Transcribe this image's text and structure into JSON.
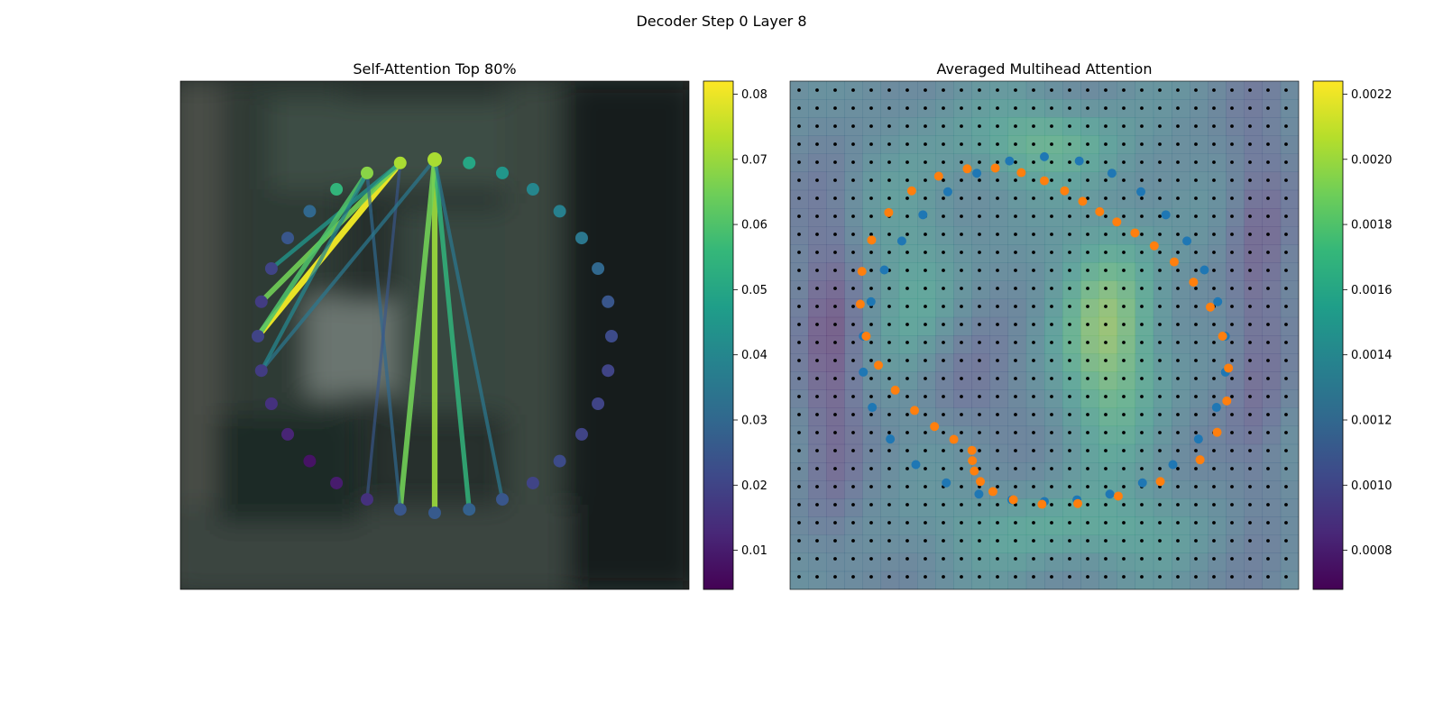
{
  "figure": {
    "title": "Decoder Step 0 Layer 8"
  },
  "colors": {
    "viridis": [
      "#440154",
      "#482878",
      "#3e4989",
      "#31688e",
      "#26828e",
      "#1f9e89",
      "#35b779",
      "#6ece58",
      "#b5de2b",
      "#fde725"
    ],
    "contour_inner": "#1f77b4",
    "contour_outer": "#ff7f0e",
    "grid_dot": "#000000"
  },
  "chart_data": [
    {
      "type": "scatter",
      "title": "Self-Attention Top 80%",
      "description_free": true,
      "n_points": 32,
      "point_values": [
        0.072,
        0.05,
        0.045,
        0.04,
        0.038,
        0.035,
        0.03,
        0.025,
        0.022,
        0.02,
        0.02,
        0.02,
        0.022,
        0.02,
        0.025,
        0.028,
        0.026,
        0.025,
        0.015,
        0.01,
        0.008,
        0.012,
        0.015,
        0.018,
        0.02,
        0.018,
        0.02,
        0.025,
        0.03,
        0.055,
        0.068,
        0.072
      ],
      "edges": [
        {
          "from": 0,
          "to": 16,
          "value": 0.07
        },
        {
          "from": 0,
          "to": 15,
          "value": 0.055
        },
        {
          "from": 0,
          "to": 17,
          "value": 0.065
        },
        {
          "from": 0,
          "to": 14,
          "value": 0.035
        },
        {
          "from": 31,
          "to": 24,
          "value": 0.08
        },
        {
          "from": 31,
          "to": 25,
          "value": 0.065
        },
        {
          "from": 31,
          "to": 26,
          "value": 0.045
        },
        {
          "from": 30,
          "to": 24,
          "value": 0.06
        },
        {
          "from": 30,
          "to": 17,
          "value": 0.03
        },
        {
          "from": 31,
          "to": 18,
          "value": 0.025
        },
        {
          "from": 0,
          "to": 23,
          "value": 0.035
        },
        {
          "from": 30,
          "to": 23,
          "value": 0.04
        }
      ],
      "colorbar": {
        "vmin": 0.004,
        "vmax": 0.082,
        "ticks": [
          0.01,
          0.02,
          0.03,
          0.04,
          0.05,
          0.06,
          0.07,
          0.08
        ],
        "tick_labels": [
          "0.01",
          "0.02",
          "0.03",
          "0.04",
          "0.05",
          "0.06",
          "0.07",
          "0.08"
        ]
      }
    },
    {
      "type": "heatmap",
      "title": "Averaged Multihead Attention",
      "grid_size": 28,
      "colorbar": {
        "vmin": 0.00068,
        "vmax": 0.00224,
        "ticks": [
          0.0008,
          0.001,
          0.0012,
          0.0014,
          0.0016,
          0.0018,
          0.002,
          0.0022
        ],
        "tick_labels": [
          "0.0008",
          "0.0010",
          "0.0012",
          "0.0014",
          "0.0016",
          "0.0018",
          "0.0020",
          "0.0022"
        ]
      },
      "inner_contour_points": 32,
      "outer_contour_points": 40
    }
  ]
}
